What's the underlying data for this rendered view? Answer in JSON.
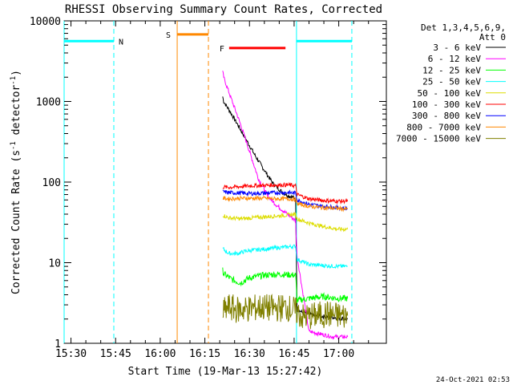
{
  "chart_data": {
    "type": "line",
    "title": "RHESSI Observing Summary Count Rates, Corrected",
    "xlabel": "Start Time (19-Mar-13 15:27:42)",
    "ylabel_main": "Corrected Count Rate (s",
    "ylabel_sup1": "-1",
    "ylabel_mid": " detector",
    "ylabel_sup2": "-1",
    "ylabel_end": ")",
    "ylim": [
      1,
      10000
    ],
    "y_scale": "log",
    "xlim_min": [
      927.7,
      1036
    ],
    "x_ticks": [
      {
        "value": 930,
        "label": "15:30"
      },
      {
        "value": 945,
        "label": "15:45"
      },
      {
        "value": 960,
        "label": "16:00"
      },
      {
        "value": 975,
        "label": "16:15"
      },
      {
        "value": 990,
        "label": "16:30"
      },
      {
        "value": 1005,
        "label": "16:45"
      },
      {
        "value": 1020,
        "label": "17:00"
      }
    ],
    "y_ticks": [
      {
        "value": 1,
        "label": "1"
      },
      {
        "value": 10,
        "label": "10"
      },
      {
        "value": 100,
        "label": "100"
      },
      {
        "value": 1000,
        "label": "1000"
      },
      {
        "value": 10000,
        "label": "10000"
      }
    ],
    "legend_header": [
      "Det 1,3,4,5,6,9,",
      "Att 0"
    ],
    "series": [
      {
        "name": "3 - 6 keV",
        "color": "#000000",
        "x": [
          981.0,
          981.3,
          983,
          986,
          989,
          992,
          995,
          998,
          1001,
          1003,
          1004.5,
          1005.5,
          1006,
          1008,
          1012,
          1018,
          1023
        ],
        "y": [
          1150,
          1000,
          800,
          520,
          330,
          210,
          140,
          95,
          75,
          68,
          65,
          60,
          2.6,
          2.4,
          2.2,
          2.1,
          2.0
        ]
      },
      {
        "name": "6 - 12 keV",
        "color": "#ff00ff",
        "x": [
          981.0,
          981.5,
          984,
          987,
          990,
          993,
          996,
          999,
          1002,
          1004,
          1005.5,
          1006,
          1010,
          1014,
          1018,
          1023
        ],
        "y": [
          2300,
          1900,
          1050,
          520,
          240,
          110,
          68,
          52,
          42,
          37,
          33,
          12,
          1.4,
          1.3,
          1.2,
          1.2
        ]
      },
      {
        "name": "12 - 25 keV",
        "color": "#00ff00",
        "x": [
          981.0,
          981.5,
          984,
          987,
          990,
          995,
          1000,
          1005.5,
          1006,
          1010,
          1015,
          1020,
          1023
        ],
        "y": [
          8,
          7.2,
          6.2,
          5.6,
          6.5,
          7.0,
          7.2,
          7.0,
          3.4,
          3.6,
          3.8,
          3.6,
          3.6
        ]
      },
      {
        "name": "25 - 50 keV",
        "color": "#00ffff",
        "x": [
          981.0,
          983,
          986,
          989,
          993,
          997,
          1001,
          1005.5,
          1006,
          1010,
          1015,
          1020,
          1023
        ],
        "y": [
          15,
          13,
          13,
          14,
          14.5,
          15,
          15.5,
          16,
          11,
          9.5,
          9.2,
          9.0,
          9.0
        ]
      },
      {
        "name": "50 - 100 keV",
        "color": "#dddd00",
        "x": [
          981.0,
          983,
          987,
          991,
          995,
          999,
          1003,
          1005.5,
          1006,
          1010,
          1015,
          1020,
          1023
        ],
        "y": [
          39,
          36,
          35,
          36,
          37,
          38,
          39,
          40,
          35,
          31,
          28,
          26,
          26
        ]
      },
      {
        "name": "100 - 300 keV",
        "color": "#ff0000",
        "x": [
          981.0,
          983,
          987,
          991,
          995,
          999,
          1003,
          1005.5,
          1006,
          1010,
          1015,
          1020,
          1023
        ],
        "y": [
          87,
          86,
          88,
          90,
          91,
          92,
          92,
          90,
          70,
          62,
          59,
          58,
          58
        ]
      },
      {
        "name": "300 - 800 keV",
        "color": "#0000ff",
        "x": [
          981.0,
          983,
          987,
          991,
          995,
          999,
          1003,
          1005.5,
          1006,
          1010,
          1015,
          1020,
          1023
        ],
        "y": [
          76,
          74,
          73,
          72,
          73,
          74,
          74,
          73,
          60,
          53,
          50,
          48,
          47
        ]
      },
      {
        "name": "800 - 7000 keV",
        "color": "#ff8800",
        "x": [
          981.0,
          983,
          987,
          991,
          995,
          999,
          1003,
          1005.5,
          1006,
          1010,
          1015,
          1020,
          1023
        ],
        "y": [
          63,
          62,
          63,
          63,
          63,
          62,
          62,
          61,
          54,
          50,
          48,
          47,
          46
        ]
      },
      {
        "name": "7000 - 15000 keV",
        "color": "#808000",
        "x": [
          981.0,
          983,
          986,
          990,
          994,
          998,
          1002,
          1005,
          1008,
          1012,
          1016,
          1020,
          1023
        ],
        "y": [
          2.4,
          2.8,
          2.6,
          2.7,
          2.8,
          2.7,
          2.8,
          2.6,
          2.1,
          2.2,
          2.3,
          2.2,
          2.2
        ]
      }
    ],
    "markers": {
      "night": [
        {
          "x_start": 927.7,
          "x_end": 944.4,
          "label": "N"
        },
        {
          "x_start": 1005.8,
          "x_end": 1024.4,
          "label": ""
        }
      ],
      "saa": {
        "x_start": 965.7,
        "x_end": 976.2,
        "label": "S"
      },
      "flare": {
        "x_start": 981.0,
        "x_end": 1002.1,
        "label": "F"
      },
      "night_level": 5600,
      "saa_level": 6800,
      "flare_level": 4600
    },
    "footer_date": "24-Oct-2021 02:53"
  }
}
